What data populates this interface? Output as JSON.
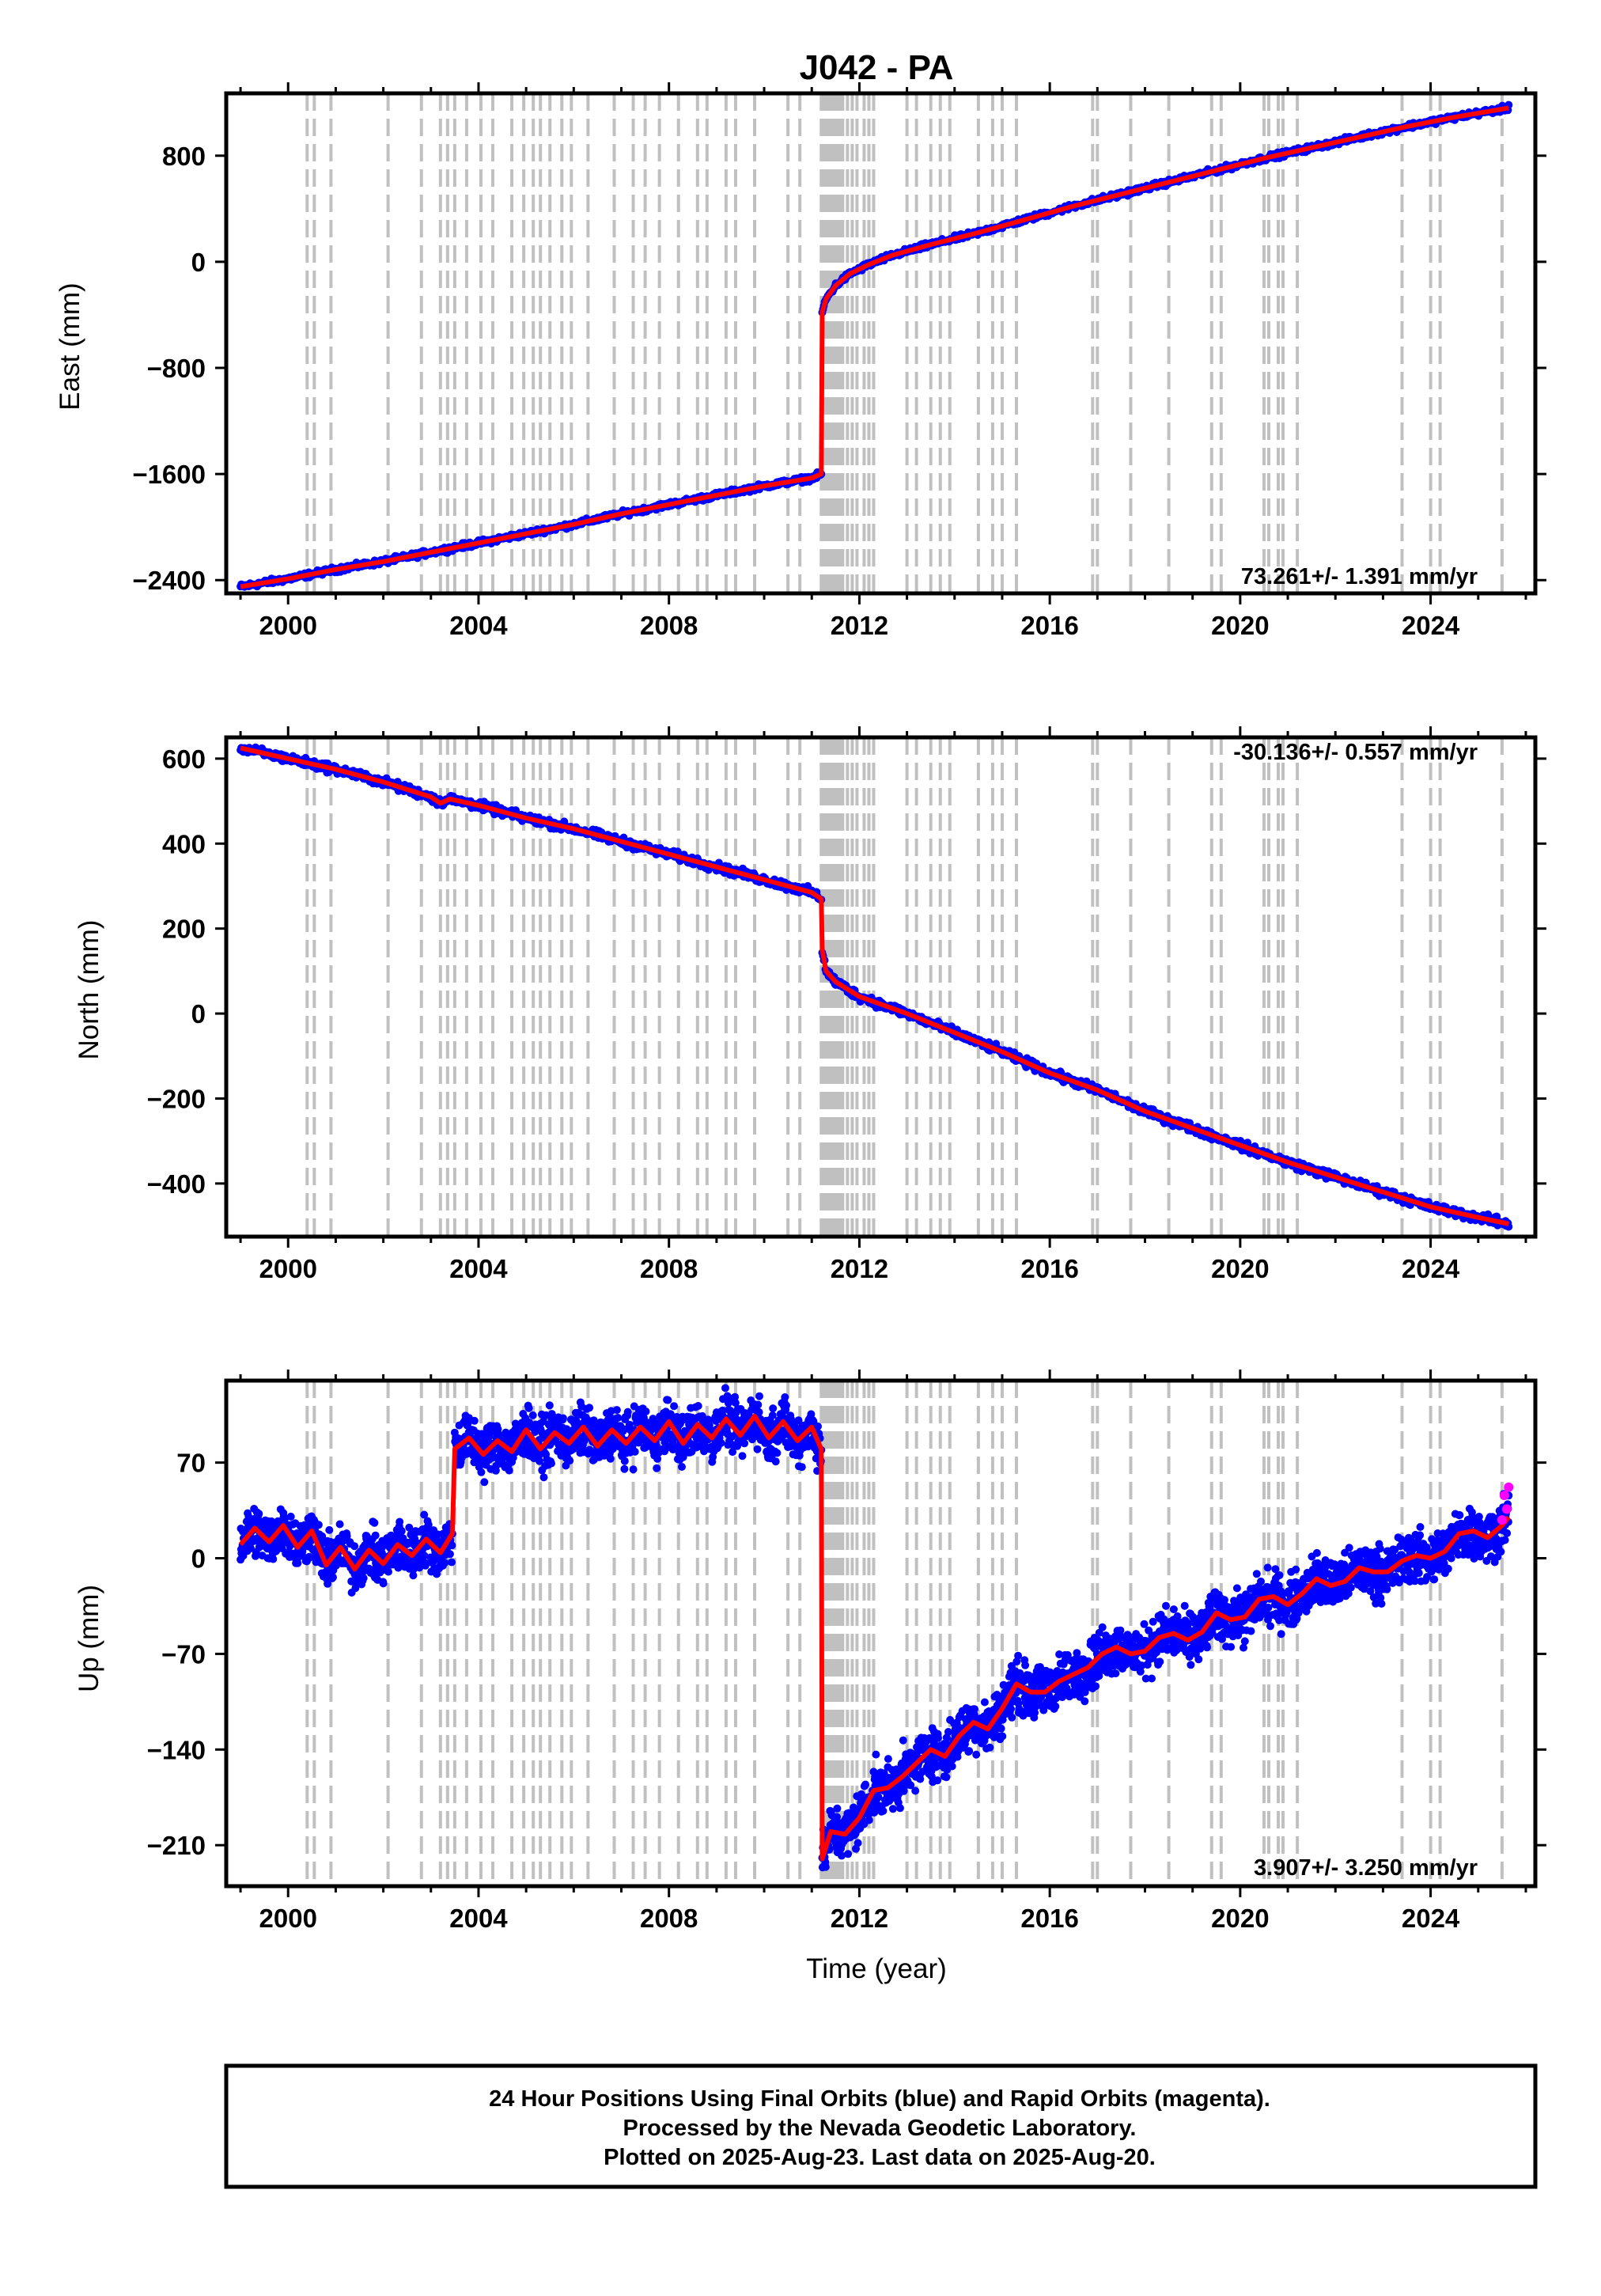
{
  "chart_data": {
    "type": "scatter",
    "title": "J042 - PA",
    "xlabel": "Time (year)",
    "xlim": [
      1998.7,
      2026.2
    ],
    "x_ticks": [
      2000,
      2004,
      2008,
      2012,
      2016,
      2020,
      2024
    ],
    "x_tick_labels": [
      "2000",
      "2004",
      "2008",
      "2012",
      "2016",
      "2020",
      "2024"
    ],
    "first_data_year": 1999.0,
    "last_data_year": 2025.64,
    "event_lines": [
      2000.4,
      2000.55,
      2000.9,
      2002.1,
      2002.8,
      2003.2,
      2003.35,
      2003.5,
      2003.75,
      2004.05,
      2004.3,
      2004.7,
      2004.95,
      2005.15,
      2005.3,
      2005.5,
      2005.75,
      2005.95,
      2006.3,
      2006.85,
      2007.25,
      2007.5,
      2007.8,
      2008.2,
      2008.6,
      2008.8,
      2009.2,
      2009.4,
      2009.8,
      2010.5,
      2010.75,
      2011.2,
      2011.25,
      2011.3,
      2011.35,
      2011.4,
      2011.45,
      2011.5,
      2011.55,
      2011.6,
      2011.65,
      2011.75,
      2011.85,
      2011.95,
      2012.1,
      2012.2,
      2012.3,
      2013.0,
      2013.2,
      2013.5,
      2013.7,
      2013.9,
      2014.5,
      2014.8,
      2015.0,
      2015.3,
      2016.9,
      2017.0,
      2017.7,
      2018.5,
      2019.4,
      2019.6,
      2020.5,
      2020.6,
      2020.8,
      2020.9,
      2021.2,
      2023.4,
      2024.0,
      2024.2,
      2025.5
    ],
    "panels": [
      {
        "ylabel": "East (mm)",
        "ylim": [
          -2500,
          1270
        ],
        "y_ticks": [
          -2400,
          -1600,
          -800,
          0,
          800
        ],
        "y_tick_labels": [
          "-2400",
          "-1600",
          "-800",
          "0",
          "800"
        ],
        "rate_label": "73.261+/- 1.391 mm/yr",
        "rate_position": "bottom-right",
        "series": [
          {
            "x": [
              1999.0,
              2000.0,
              2001.0,
              2002.0,
              2003.0,
              2004.0,
              2005.0,
              2006.0,
              2007.0,
              2008.0,
              2009.0,
              2010.0,
              2011.0,
              2011.2
            ],
            "y": [
              -2450,
              -2390,
              -2320,
              -2260,
              -2190,
              -2120,
              -2050,
              -1980,
              -1900,
              -1830,
              -1760,
              -1690,
              -1630,
              -1600
            ]
          },
          {
            "x": [
              2011.22,
              2011.3,
              2011.5,
              2011.8,
              2012.2,
              2012.7,
              2013.5,
              2014.5,
              2015.5,
              2016.5,
              2017.5,
              2018.5,
              2019.5,
              2020.5,
              2021.5,
              2022.5,
              2023.5,
              2024.5,
              2025.64
            ],
            "y": [
              -380,
              -280,
              -180,
              -90,
              -20,
              50,
              130,
              220,
              320,
              420,
              510,
              600,
              690,
              780,
              860,
              940,
              1020,
              1090,
              1160
            ]
          }
        ]
      },
      {
        "ylabel": "North (mm)",
        "ylim": [
          -525,
          650
        ],
        "y_ticks": [
          -400,
          -200,
          0,
          200,
          400,
          600
        ],
        "y_tick_labels": [
          "-400",
          "-200",
          "0",
          "200",
          "400",
          "600"
        ],
        "rate_label": "-30.136+/- 0.557 mm/yr",
        "rate_position": "top-right",
        "series": [
          {
            "x": [
              1999.0,
              2000.0,
              2001.0,
              2002.0,
              2003.0,
              2003.2,
              2003.4,
              2004.0,
              2005.0,
              2006.0,
              2007.0,
              2008.0,
              2009.0,
              2010.0,
              2011.0,
              2011.2
            ],
            "y": [
              625,
              600,
              575,
              545,
              510,
              495,
              505,
              490,
              460,
              435,
              405,
              375,
              345,
              315,
              285,
              270
            ]
          },
          {
            "x": [
              2011.22,
              2011.3,
              2011.5,
              2012.0,
              2012.5,
              2013.0,
              2014.0,
              2015.0,
              2016.0,
              2017.0,
              2018.0,
              2019.0,
              2020.0,
              2021.0,
              2022.0,
              2023.0,
              2024.0,
              2025.0,
              2025.64
            ],
            "y": [
              150,
              100,
              75,
              40,
              20,
              0,
              -45,
              -90,
              -140,
              -180,
              -230,
              -270,
              -310,
              -350,
              -385,
              -420,
              -455,
              -480,
              -495
            ]
          }
        ]
      },
      {
        "ylabel": "Up (mm)",
        "ylim": [
          -240,
          130
        ],
        "y_ticks": [
          -210,
          -140,
          -70,
          0,
          70
        ],
        "y_tick_labels": [
          "-210",
          "-140",
          "-70",
          "0",
          "70"
        ],
        "rate_label": "3.907+/- 3.250 mm/yr",
        "rate_position": "bottom-right",
        "series": [
          {
            "x": [
              1999.0,
              1999.3,
              1999.6,
              1999.9,
              2000.2,
              2000.5,
              2000.8,
              2001.1,
              2001.4,
              2001.7,
              2002.0,
              2002.3,
              2002.6,
              2002.9,
              2003.2,
              2003.45
            ],
            "y": [
              10,
              22,
              12,
              24,
              8,
              20,
              -5,
              8,
              -8,
              6,
              -4,
              10,
              2,
              14,
              4,
              18
            ]
          },
          {
            "x": [
              2003.5,
              2003.8,
              2004.1,
              2004.4,
              2004.7,
              2005.0,
              2005.3,
              2005.6,
              2005.9,
              2006.2,
              2006.5,
              2006.8,
              2007.1,
              2007.4,
              2007.7,
              2008.0,
              2008.3,
              2008.6,
              2008.9,
              2009.2,
              2009.5,
              2009.8,
              2010.1,
              2010.4,
              2010.7,
              2011.0,
              2011.2
            ],
            "y": [
              80,
              88,
              76,
              86,
              78,
              94,
              80,
              92,
              84,
              96,
              82,
              94,
              84,
              96,
              86,
              100,
              84,
              98,
              88,
              102,
              90,
              104,
              88,
              100,
              86,
              96,
              80
            ]
          },
          {
            "x": [
              2011.22,
              2011.4,
              2011.7,
              2012.0,
              2012.3,
              2012.6,
              2012.9,
              2013.2,
              2013.5,
              2013.8,
              2014.1,
              2014.4,
              2014.7,
              2015.0,
              2015.3,
              2015.6,
              2015.9,
              2016.2,
              2016.5,
              2016.8,
              2017.1,
              2017.4,
              2017.7,
              2018.0,
              2018.3,
              2018.6,
              2018.9,
              2019.2,
              2019.5,
              2019.8,
              2020.1,
              2020.4,
              2020.7,
              2021.0,
              2021.3,
              2021.6,
              2021.9,
              2022.2,
              2022.5,
              2022.8,
              2023.1,
              2023.4,
              2023.7,
              2024.0,
              2024.3,
              2024.6,
              2024.9,
              2025.2,
              2025.5,
              2025.64
            ],
            "y": [
              -220,
              -200,
              -202,
              -190,
              -170,
              -168,
              -160,
              -150,
              -140,
              -145,
              -130,
              -120,
              -125,
              -110,
              -92,
              -98,
              -98,
              -90,
              -85,
              -80,
              -70,
              -65,
              -70,
              -68,
              -58,
              -55,
              -60,
              -54,
              -40,
              -45,
              -43,
              -30,
              -28,
              -34,
              -26,
              -15,
              -20,
              -17,
              -7,
              -10,
              -10,
              -2,
              2,
              0,
              5,
              18,
              20,
              15,
              24,
              30
            ]
          }
        ],
        "rapid_points": {
          "x": [
            2025.5,
            2025.55,
            2025.6,
            2025.64
          ],
          "y": [
            28,
            46,
            36,
            52
          ]
        }
      }
    ]
  },
  "footer": {
    "line1": "24 Hour Positions Using Final Orbits (blue) and Rapid Orbits (magenta).",
    "line2": "Processed by the Nevada Geodetic Laboratory.",
    "line3": "Plotted on 2025-Aug-23. Last data on 2025-Aug-20."
  },
  "colors": {
    "final_orbits": "#0000ff",
    "rapid_orbits": "#ff00ff",
    "model_line": "#ff0000",
    "event_lines": "#c0c0c0",
    "frame": "#000000"
  }
}
